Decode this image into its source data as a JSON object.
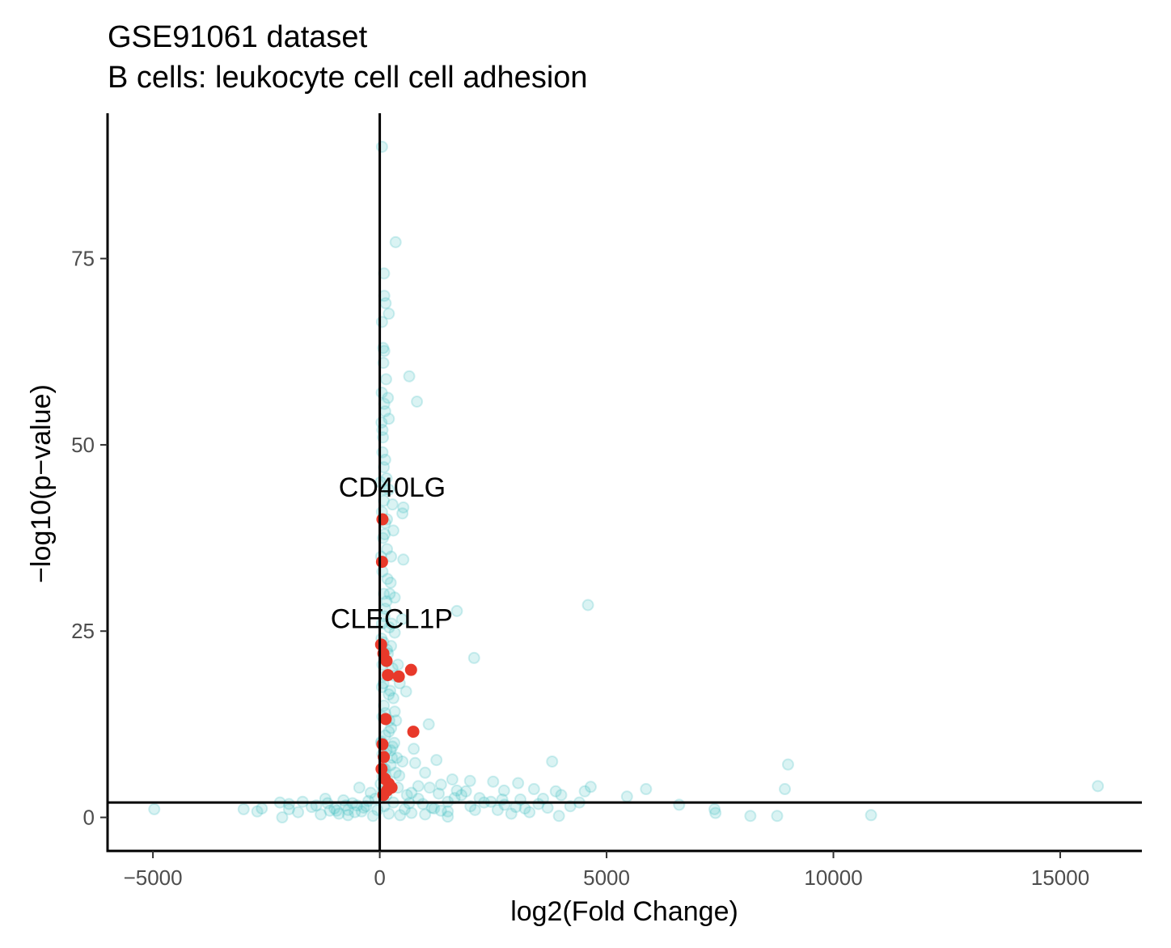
{
  "chart_data": {
    "type": "scatter",
    "title": "GSE91061 dataset",
    "subtitle": "B cells: leukocyte cell cell adhesion",
    "xlabel": "log2(Fold Change)",
    "ylabel": "−log10(p−value)",
    "xlim": [
      -6000,
      16800
    ],
    "ylim": [
      -4.5,
      94.5
    ],
    "x_ticks": [
      -5000,
      0,
      5000,
      10000,
      15000
    ],
    "x_tick_labels": [
      "−5000",
      "0",
      "5000",
      "10000",
      "15000"
    ],
    "y_ticks": [
      0,
      25,
      50,
      75
    ],
    "y_tick_labels": [
      "0",
      "25",
      "50",
      "75"
    ],
    "grid": false,
    "reference_lines": {
      "vertical_x": 0,
      "horizontal_y": 2
    },
    "colors": {
      "background_points": "#48c1c4",
      "highlight_points": "#e8392a",
      "axis": "#000000"
    },
    "series": [
      {
        "role": "background",
        "points": [
          [
            50,
            90
          ],
          [
            350,
            77.2
          ],
          [
            100,
            70
          ],
          [
            200,
            67.6
          ],
          [
            50,
            66.5
          ],
          [
            100,
            62.6
          ],
          [
            80,
            61
          ],
          [
            650,
            59.2
          ],
          [
            140,
            58.8
          ],
          [
            180,
            56.3
          ],
          [
            100,
            55.5
          ],
          [
            820,
            55.8
          ],
          [
            120,
            54.5
          ],
          [
            40,
            53
          ],
          [
            60,
            49
          ],
          [
            90,
            47
          ],
          [
            150,
            45.5
          ],
          [
            200,
            44
          ],
          [
            90,
            42.5
          ],
          [
            280,
            42
          ],
          [
            520,
            41.6
          ],
          [
            500,
            40.8
          ],
          [
            120,
            39.5
          ],
          [
            300,
            38.5
          ],
          [
            70,
            37.5
          ],
          [
            160,
            36
          ],
          [
            520,
            34.6
          ],
          [
            60,
            33
          ],
          [
            240,
            31.5
          ],
          [
            90,
            30
          ],
          [
            330,
            29.5
          ],
          [
            4590,
            28.5
          ],
          [
            1700,
            27.7
          ],
          [
            120,
            28
          ],
          [
            490,
            26.6
          ],
          [
            50,
            26
          ],
          [
            210,
            25.5
          ],
          [
            330,
            24.8
          ],
          [
            80,
            23.5
          ],
          [
            160,
            22.5
          ],
          [
            2080,
            21.4
          ],
          [
            60,
            20.5
          ],
          [
            280,
            20
          ],
          [
            120,
            19
          ],
          [
            440,
            18
          ],
          [
            50,
            17.5
          ],
          [
            580,
            16.9
          ],
          [
            200,
            16.5
          ],
          [
            90,
            15
          ],
          [
            330,
            14.2
          ],
          [
            60,
            13.5
          ],
          [
            1080,
            12.5
          ],
          [
            250,
            12
          ],
          [
            120,
            11
          ],
          [
            40,
            10.2
          ],
          [
            320,
            10
          ],
          [
            750,
            9.2
          ],
          [
            150,
            9
          ],
          [
            60,
            8.5
          ],
          [
            380,
            8
          ],
          [
            1250,
            7.7
          ],
          [
            3800,
            7.5
          ],
          [
            780,
            7.3
          ],
          [
            9000,
            7.1
          ],
          [
            240,
            7
          ],
          [
            120,
            6.5
          ],
          [
            1000,
            6
          ],
          [
            430,
            5.6
          ],
          [
            60,
            5.5
          ],
          [
            1600,
            5.1
          ],
          [
            1990,
            4.9
          ],
          [
            2500,
            4.8
          ],
          [
            3050,
            4.6
          ],
          [
            15830,
            4.2
          ],
          [
            4650,
            4.1
          ],
          [
            1100,
            4
          ],
          [
            -450,
            4
          ],
          [
            3400,
            3.8
          ],
          [
            5870,
            3.8
          ],
          [
            8930,
            3.8
          ],
          [
            2740,
            3.6
          ],
          [
            3880,
            3.5
          ],
          [
            4520,
            3.5
          ],
          [
            700,
            3.3
          ],
          [
            -200,
            3.3
          ],
          [
            1300,
            3.2
          ],
          [
            1800,
            3
          ],
          [
            5450,
            2.8
          ],
          [
            2200,
            2.6
          ],
          [
            -1200,
            2.5
          ],
          [
            2700,
            2.4
          ],
          [
            3100,
            2.4
          ],
          [
            -800,
            2.3
          ],
          [
            -250,
            2.2
          ],
          [
            -1700,
            2.1
          ],
          [
            1500,
            2.1
          ],
          [
            2450,
            2.1
          ],
          [
            -2200,
            2
          ],
          [
            4400,
            2
          ],
          [
            -600,
            1.9
          ],
          [
            -2000,
            1.8
          ],
          [
            3500,
            1.8
          ],
          [
            6600,
            1.7
          ],
          [
            -1400,
            1.6
          ],
          [
            -500,
            1.6
          ],
          [
            2000,
            1.5
          ],
          [
            -300,
            1.5
          ],
          [
            3000,
            1.4
          ],
          [
            -1500,
            1.4
          ],
          [
            3700,
            1.3
          ],
          [
            -2600,
            1.2
          ],
          [
            -1000,
            1.2
          ],
          [
            1200,
            1.2
          ],
          [
            -4970,
            1.1
          ],
          [
            -3000,
            1.1
          ],
          [
            -2000,
            1.1
          ],
          [
            7380,
            1.1
          ],
          [
            -700,
            1
          ],
          [
            2600,
            1
          ],
          [
            -1100,
            0.9
          ],
          [
            -2700,
            0.8
          ],
          [
            -400,
            0.8
          ],
          [
            1500,
            0.8
          ],
          [
            -1800,
            0.7
          ],
          [
            3300,
            0.7
          ],
          [
            7400,
            0.6
          ],
          [
            -900,
            0.5
          ],
          [
            2900,
            0.5
          ],
          [
            -1300,
            0.4
          ],
          [
            1000,
            0.4
          ],
          [
            10830,
            0.3
          ],
          [
            3950,
            0.2
          ],
          [
            8170,
            0.2
          ],
          [
            8760,
            0.2
          ],
          [
            -2150,
            0
          ],
          [
            -150,
            0.2
          ],
          [
            1500,
            0.1
          ],
          [
            -700,
            0.3
          ],
          [
            200,
            0.5
          ],
          [
            450,
            0.3
          ],
          [
            700,
            0.6
          ],
          [
            -50,
            1
          ],
          [
            100,
            1.5
          ],
          [
            300,
            2
          ],
          [
            -100,
            2.5
          ],
          [
            150,
            3
          ],
          [
            60,
            3.5
          ],
          [
            20,
            4.5
          ],
          [
            90,
            6.5
          ],
          [
            30,
            10
          ],
          [
            80,
            18
          ],
          [
            140,
            21
          ],
          [
            40,
            24
          ],
          [
            100,
            27
          ],
          [
            170,
            32
          ],
          [
            30,
            35
          ],
          [
            110,
            38
          ],
          [
            50,
            41
          ],
          [
            20,
            45
          ],
          [
            120,
            48
          ],
          [
            70,
            51
          ],
          [
            200,
            53.5
          ],
          [
            45,
            57
          ],
          [
            75,
            63
          ],
          [
            130,
            69
          ],
          [
            95,
            73
          ],
          [
            250,
            35
          ],
          [
            220,
            30
          ],
          [
            260,
            26
          ],
          [
            180,
            22
          ],
          [
            230,
            17
          ],
          [
            210,
            13
          ],
          [
            240,
            9
          ],
          [
            160,
            5
          ],
          [
            400,
            4
          ],
          [
            600,
            3
          ],
          [
            850,
            2.5
          ],
          [
            950,
            1.8
          ],
          [
            1150,
            1.3
          ],
          [
            1350,
            0.9
          ],
          [
            -350,
            1.3
          ],
          [
            -550,
            0.7
          ],
          [
            -750,
            1.6
          ],
          [
            -950,
            0.9
          ],
          [
            -1150,
            1.9
          ],
          [
            550,
            1.1
          ],
          [
            650,
            1.9
          ],
          [
            350,
            6
          ],
          [
            500,
            7.5
          ],
          [
            280,
            9.5
          ],
          [
            360,
            13
          ],
          [
            300,
            16
          ],
          [
            400,
            20.5
          ],
          [
            150,
            29
          ],
          [
            100,
            44
          ],
          [
            60,
            52
          ],
          [
            160,
            40
          ],
          [
            250,
            23
          ],
          [
            330,
            19
          ],
          [
            120,
            14
          ],
          [
            200,
            11.5
          ],
          [
            270,
            8
          ],
          [
            110,
            5.8
          ],
          [
            1650,
            2.6
          ],
          [
            1900,
            3.5
          ],
          [
            2300,
            2
          ],
          [
            2100,
            1
          ],
          [
            2750,
            1.7
          ],
          [
            3200,
            1.2
          ],
          [
            3600,
            2.5
          ],
          [
            4200,
            1.5
          ],
          [
            4000,
            3
          ],
          [
            850,
            4.2
          ],
          [
            1350,
            4.4
          ],
          [
            1700,
            3.6
          ]
        ]
      },
      {
        "role": "highlight",
        "points": [
          [
            60,
            40
          ],
          [
            50,
            34.3
          ],
          [
            30,
            23.2
          ],
          [
            80,
            22
          ],
          [
            150,
            21
          ],
          [
            180,
            19.1
          ],
          [
            420,
            18.9
          ],
          [
            690,
            19.8
          ],
          [
            130,
            13.2
          ],
          [
            740,
            11.5
          ],
          [
            60,
            9.8
          ],
          [
            90,
            8.1
          ],
          [
            40,
            6.5
          ],
          [
            110,
            5.2
          ],
          [
            200,
            4.5
          ],
          [
            260,
            4
          ],
          [
            160,
            3.6
          ],
          [
            80,
            3
          ]
        ]
      }
    ],
    "annotations": [
      {
        "label": "CD40LG",
        "x": 60,
        "y": 40
      },
      {
        "label": "CLECL1P",
        "x": 50,
        "y": 34.3
      }
    ]
  }
}
